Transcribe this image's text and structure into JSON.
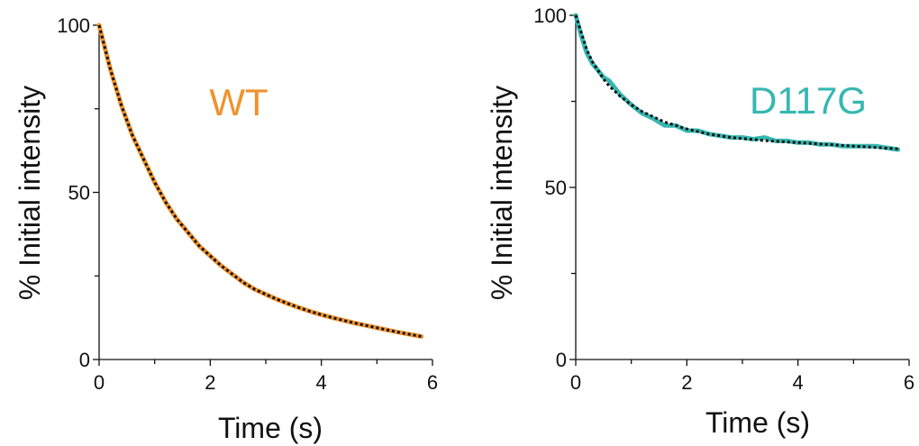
{
  "chart_data": [
    {
      "type": "line",
      "title": "",
      "xlabel": "Time (s)",
      "ylabel": "% Initial intensity",
      "xlim": [
        0,
        6
      ],
      "ylim": [
        0,
        100
      ],
      "xticks": [
        "0",
        "2",
        "4",
        "6"
      ],
      "yticks": [
        "0",
        "50",
        "100"
      ],
      "grid": false,
      "annotation": {
        "text": "WT",
        "color": "#f0922e"
      },
      "series": [
        {
          "name": "WT",
          "color": "#f0922e",
          "style": "solid",
          "x": [
            0,
            0.2,
            0.4,
            0.6,
            0.8,
            1.0,
            1.2,
            1.4,
            1.6,
            1.8,
            2.0,
            2.2,
            2.4,
            2.6,
            2.8,
            3.0,
            3.2,
            3.4,
            3.6,
            3.8,
            4.0,
            4.2,
            4.4,
            4.6,
            4.8,
            5.0,
            5.2,
            5.4,
            5.6,
            5.8
          ],
          "y": [
            100,
            87,
            76,
            67,
            60,
            53,
            47,
            42,
            38,
            34,
            31,
            28,
            25.5,
            23,
            21,
            19.5,
            18,
            16.7,
            15.5,
            14.4,
            13.4,
            12.5,
            11.7,
            10.9,
            10.2,
            9.5,
            8.8,
            8.1,
            7.5,
            6.9
          ]
        },
        {
          "name": "",
          "color": "#111111",
          "style": "dotted",
          "x": [
            0,
            0.2,
            0.4,
            0.6,
            0.8,
            1.0,
            1.2,
            1.4,
            1.6,
            1.8,
            2.0,
            2.2,
            2.4,
            2.6,
            2.8,
            3.0,
            3.2,
            3.4,
            3.6,
            3.8,
            4.0,
            4.2,
            4.4,
            4.6,
            4.8,
            5.0,
            5.2,
            5.4,
            5.6,
            5.8
          ],
          "y": [
            100,
            87,
            76,
            67,
            60,
            53,
            47,
            42,
            38,
            34,
            31,
            28,
            25.5,
            23,
            21,
            19.5,
            18,
            16.7,
            15.5,
            14.4,
            13.4,
            12.5,
            11.7,
            10.9,
            10.2,
            9.5,
            8.8,
            8.1,
            7.5,
            6.9
          ]
        }
      ]
    },
    {
      "type": "line",
      "title": "",
      "xlabel": "Time (s)",
      "ylabel": "% Initial intensity",
      "xlim": [
        0,
        6
      ],
      "ylim": [
        0,
        100
      ],
      "xticks": [
        "0",
        "2",
        "4",
        "6"
      ],
      "yticks": [
        "0",
        "50",
        "100"
      ],
      "grid": false,
      "annotation": {
        "text": "D117G",
        "color": "#36b7b0"
      },
      "series": [
        {
          "name": "D117G",
          "color": "#36b7b0",
          "style": "solid",
          "x": [
            0,
            0.1,
            0.2,
            0.3,
            0.4,
            0.5,
            0.6,
            0.8,
            1.0,
            1.2,
            1.4,
            1.6,
            1.8,
            2.0,
            2.2,
            2.4,
            2.6,
            2.8,
            3.0,
            3.2,
            3.4,
            3.6,
            3.8,
            4.0,
            4.2,
            4.4,
            4.6,
            4.8,
            5.0,
            5.2,
            5.4,
            5.6,
            5.8
          ],
          "y": [
            100,
            94,
            89,
            86,
            84,
            82,
            81,
            77,
            74,
            71.5,
            70,
            68,
            68,
            66.5,
            66.5,
            65.5,
            65,
            64.5,
            64.5,
            64,
            64.5,
            63.5,
            63.5,
            63,
            63,
            62.5,
            62.5,
            62,
            62,
            62,
            62,
            61.5,
            61
          ]
        },
        {
          "name": "",
          "color": "#111111",
          "style": "dotted",
          "x": [
            0,
            0.1,
            0.2,
            0.3,
            0.4,
            0.5,
            0.6,
            0.8,
            1.0,
            1.2,
            1.4,
            1.6,
            1.8,
            2.0,
            2.2,
            2.4,
            2.6,
            2.8,
            3.0,
            3.2,
            3.4,
            3.6,
            3.8,
            4.0,
            4.2,
            4.4,
            4.6,
            4.8,
            5.0,
            5.2,
            5.4,
            5.6,
            5.8
          ],
          "y": [
            100,
            95,
            90,
            86.5,
            84,
            81.5,
            79.5,
            76.5,
            74,
            72,
            70.5,
            69,
            68,
            67,
            66.2,
            65.5,
            65,
            64.5,
            64.2,
            63.9,
            63.6,
            63.4,
            63.2,
            63,
            62.8,
            62.6,
            62.4,
            62.2,
            62,
            61.8,
            61.6,
            61.4,
            61.2
          ]
        }
      ]
    }
  ]
}
